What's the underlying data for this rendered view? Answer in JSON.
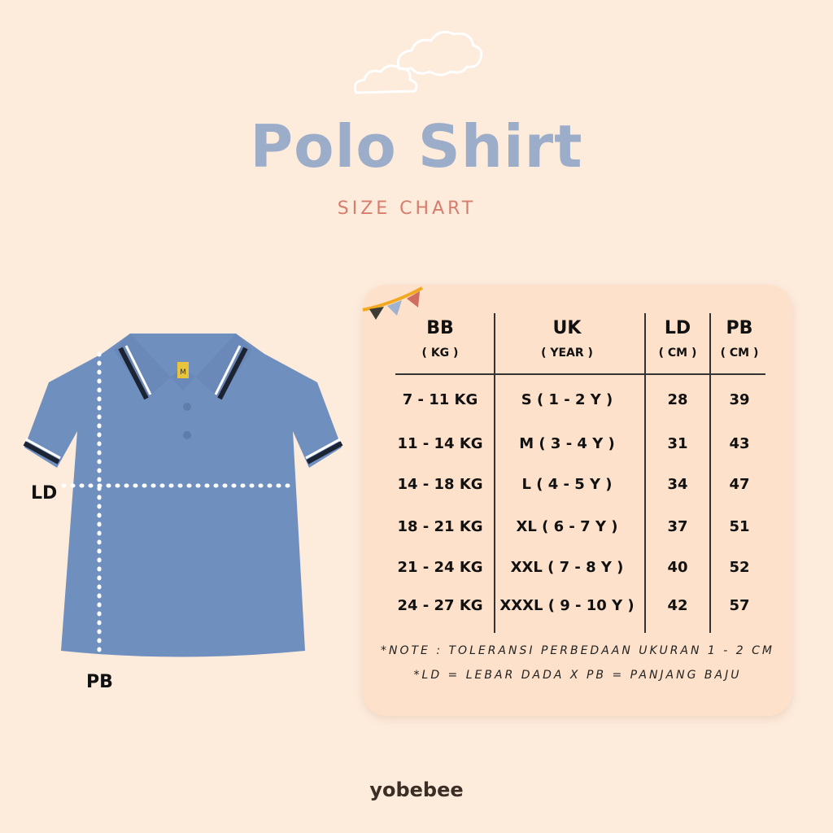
{
  "header": {
    "title": "Polo Shirt",
    "subtitle": "SIZE CHART"
  },
  "table": {
    "columns": [
      {
        "label": "BB",
        "unit": "( KG )"
      },
      {
        "label": "UK",
        "unit": "( YEAR )"
      },
      {
        "label": "LD",
        "unit": "( CM )"
      },
      {
        "label": "PB",
        "unit": "( CM )"
      }
    ],
    "rows": [
      [
        "7 - 11 KG",
        "S ( 1 - 2 Y )",
        "28",
        "39"
      ],
      [
        "11 - 14 KG",
        "M ( 3 - 4 Y )",
        "31",
        "43"
      ],
      [
        "14 - 18 KG",
        "L ( 4 - 5 Y )",
        "34",
        "47"
      ],
      [
        "18 - 21 KG",
        "XL ( 6 - 7 Y )",
        "37",
        "51"
      ],
      [
        "21 - 24 KG",
        "XXL ( 7 - 8 Y )",
        "40",
        "52"
      ],
      [
        "24 - 27 KG",
        "XXXL ( 9 - 10 Y )",
        "42",
        "57"
      ]
    ]
  },
  "notes": [
    "*NOTE : TOLERANSI PERBEDAAN UKURAN 1 - 2 CM",
    "*LD = LEBAR DADA X PB = PANJANG BAJU"
  ],
  "diagram": {
    "ld_label": "LD",
    "pb_label": "PB",
    "tag_label": "M",
    "shirt_color": "#6f8fbf"
  },
  "brand": {
    "logo": "yobebee"
  },
  "colors": {
    "background": "#fdebdc",
    "card": "#fde1cb",
    "title": "#9cadc9",
    "subtitle": "#d67d6d"
  }
}
